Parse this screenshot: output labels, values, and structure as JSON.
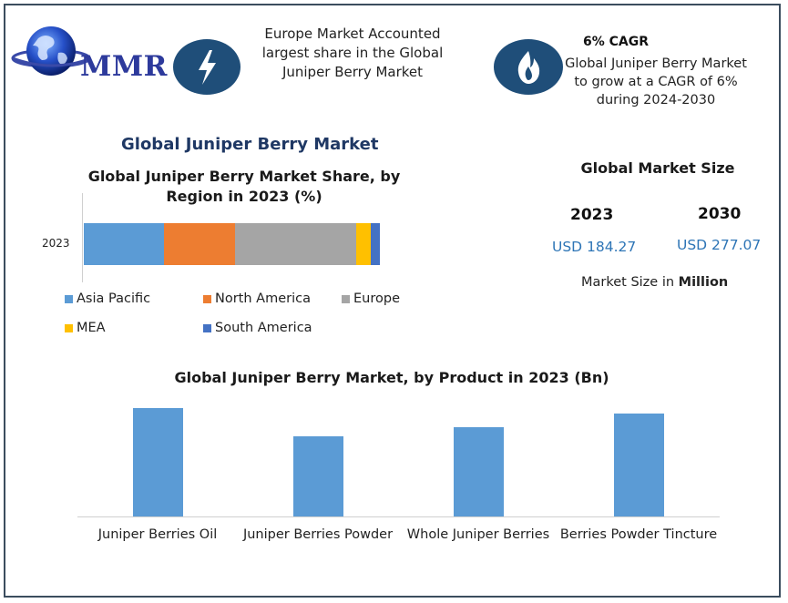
{
  "logo": {
    "text": "MMR"
  },
  "header": {
    "europe_note": "Europe Market Accounted largest share in the Global Juniper Berry Market",
    "cagr_title": "6% CAGR",
    "cagr_text": "Global Juniper Berry Market to grow at a CAGR of 6% during 2024-2030",
    "icons": [
      "lightning-icon",
      "flame-icon",
      "globe-icon"
    ]
  },
  "main_title": "Global Juniper Berry Market",
  "market_size": {
    "title": "Global Market Size",
    "year_a": "2023",
    "value_a": "USD 184.27",
    "year_b": "2030",
    "value_b": "USD 277.07",
    "note_prefix": "Market Size in ",
    "note_bold": "Million"
  },
  "chart_data": [
    {
      "type": "bar",
      "orientation": "horizontal-stacked-100",
      "title": "Global Juniper Berry Market Share, by Region in 2023 (%)",
      "categories": [
        "2023"
      ],
      "series": [
        {
          "name": "Asia Pacific",
          "values": [
            27
          ],
          "color": "#5b9bd5"
        },
        {
          "name": "North America",
          "values": [
            24
          ],
          "color": "#ed7d31"
        },
        {
          "name": "Europe",
          "values": [
            41
          ],
          "color": "#a5a5a5"
        },
        {
          "name": "MEA",
          "values": [
            5
          ],
          "color": "#ffc000"
        },
        {
          "name": "South America",
          "values": [
            3
          ],
          "color": "#4472c4"
        }
      ],
      "legend_position": "bottom"
    },
    {
      "type": "bar",
      "title": "Global Juniper Berry Market, by Product  in 2023 (Bn)",
      "categories": [
        "Juniper Berries Oil",
        "Juniper Berries Powder",
        "Whole Juniper Berries",
        "Berries Powder Tincture"
      ],
      "series": [
        {
          "values": [
            1.0,
            0.74,
            0.82,
            0.95
          ],
          "color": "#5b9bd5"
        }
      ],
      "ylim": [
        0,
        1.0
      ],
      "grid": false
    }
  ]
}
